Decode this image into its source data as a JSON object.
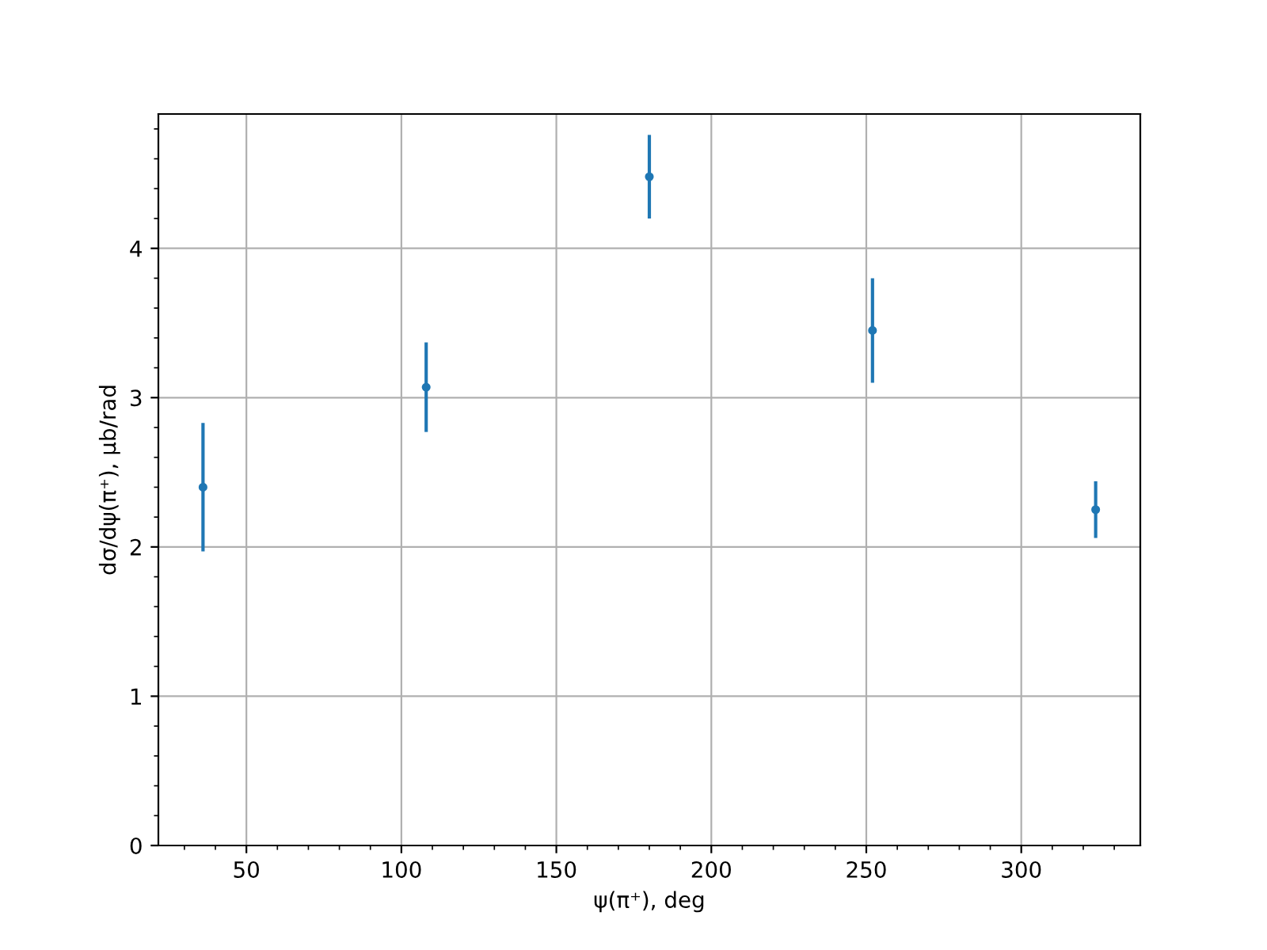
{
  "chart_data": {
    "type": "scatter",
    "xlabel": "ψ(π⁺), deg",
    "ylabel": "dσ/dψ(π⁺), μb/rad",
    "x": [
      36,
      108,
      180,
      252,
      324
    ],
    "series": [
      {
        "color": "#1f77b4",
        "values": [
          2.4,
          3.07,
          4.48,
          3.45,
          2.25
        ],
        "errors": [
          0.43,
          0.3,
          0.28,
          0.35,
          0.19
        ]
      }
    ],
    "xlim": [
      21.6,
      338.4
    ],
    "xticks": [
      50,
      100,
      150,
      200,
      250,
      300
    ],
    "ylim": [
      0,
      4.9
    ],
    "yticks": [
      0,
      1,
      2,
      3,
      4
    ],
    "grid": true,
    "marker": "circle"
  }
}
